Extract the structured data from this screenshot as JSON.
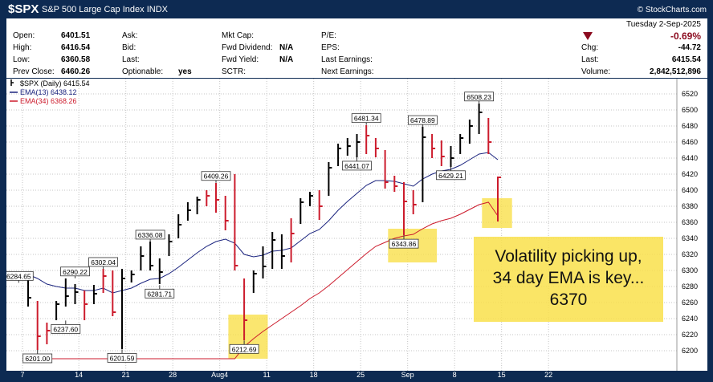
{
  "header": {
    "symbol": "$SPX",
    "company": "S&P 500 Large Cap Index",
    "exchange": "INDX",
    "credit": "© StockCharts.com"
  },
  "quote": {
    "date": "Tuesday  2-Sep-2025",
    "left": [
      {
        "label": "Open:",
        "value": "6401.51"
      },
      {
        "label": "High:",
        "value": "6416.54"
      },
      {
        "label": "Low:",
        "value": "6360.58"
      },
      {
        "label": "Prev Close:",
        "value": "6460.26"
      }
    ],
    "col2": [
      "Ask:",
      "Bid:",
      "Last:",
      "Optionable:"
    ],
    "optionable_value": "yes",
    "col3": [
      {
        "label": "Mkt Cap:",
        "value": ""
      },
      {
        "label": "Fwd Dividend:",
        "value": "N/A"
      },
      {
        "label": "Fwd Yield:",
        "value": "N/A"
      },
      {
        "label": "SCTR:",
        "value": ""
      }
    ],
    "col4": [
      "P/E:",
      "EPS:",
      "Last Earnings:",
      "Next Earnings:"
    ],
    "change_pct": "-0.69%",
    "right": [
      {
        "label": "Chg:",
        "value": "-44.72"
      },
      {
        "label": "Last:",
        "value": "6415.54"
      },
      {
        "label": "Volume:",
        "value": "2,842,512,896"
      }
    ],
    "down_color": "#8b0a1e"
  },
  "chart_data": {
    "type": "bar",
    "ohlc_style": "hlc bars",
    "ylim": [
      6190,
      6530
    ],
    "yticks": [
      6200,
      6220,
      6240,
      6260,
      6280,
      6300,
      6320,
      6340,
      6360,
      6380,
      6400,
      6420,
      6440,
      6460,
      6480,
      6500,
      6520
    ],
    "xticks": [
      "7",
      "14",
      "21",
      "28",
      "Aug4",
      "11",
      "18",
      "25",
      "Sep",
      "8",
      "15",
      "22"
    ],
    "legend": [
      {
        "text": "$SPX (Daily) 6415.54",
        "color": "#000000"
      },
      {
        "text": "EMA(13) 6438.12",
        "color": "#1a237e"
      },
      {
        "text": "EMA(34) 6368.26",
        "color": "#cc1b2c"
      }
    ],
    "bars": [
      {
        "i": 0,
        "h": 6290,
        "l": 6255,
        "c": 6266,
        "d": 0
      },
      {
        "i": 1,
        "h": 6262,
        "l": 6201,
        "c": 6218,
        "d": 1
      },
      {
        "i": 2,
        "h": 6235,
        "l": 6208,
        "c": 6225,
        "d": 1
      },
      {
        "i": 3,
        "h": 6262,
        "l": 6238,
        "c": 6258,
        "d": 0
      },
      {
        "i": 4,
        "h": 6290,
        "l": 6255,
        "c": 6268,
        "d": 0
      },
      {
        "i": 5,
        "h": 6283,
        "l": 6258,
        "c": 6273,
        "d": 0
      },
      {
        "i": 6,
        "h": 6275,
        "l": 6238,
        "c": 6258,
        "d": 1
      },
      {
        "i": 7,
        "h": 6282,
        "l": 6258,
        "c": 6271,
        "d": 0
      },
      {
        "i": 8,
        "h": 6302,
        "l": 6272,
        "c": 6293,
        "d": 1
      },
      {
        "i": 9,
        "h": 6300,
        "l": 6243,
        "c": 6248,
        "d": 1
      },
      {
        "i": 10,
        "h": 6302,
        "l": 6202,
        "c": 6290,
        "d": 0
      },
      {
        "i": 11,
        "h": 6300,
        "l": 6285,
        "c": 6295,
        "d": 0
      },
      {
        "i": 12,
        "h": 6330,
        "l": 6300,
        "c": 6318,
        "d": 0
      },
      {
        "i": 13,
        "h": 6336,
        "l": 6300,
        "c": 6306,
        "d": 0
      },
      {
        "i": 14,
        "h": 6315,
        "l": 6283,
        "c": 6298,
        "d": 0
      },
      {
        "i": 15,
        "h": 6345,
        "l": 6318,
        "c": 6336,
        "d": 0
      },
      {
        "i": 16,
        "h": 6370,
        "l": 6340,
        "c": 6357,
        "d": 0
      },
      {
        "i": 17,
        "h": 6385,
        "l": 6362,
        "c": 6375,
        "d": 0
      },
      {
        "i": 18,
        "h": 6392,
        "l": 6370,
        "c": 6388,
        "d": 0
      },
      {
        "i": 19,
        "h": 6400,
        "l": 6380,
        "c": 6393,
        "d": 1
      },
      {
        "i": 20,
        "h": 6409,
        "l": 6372,
        "c": 6388,
        "d": 1
      },
      {
        "i": 21,
        "h": 6393,
        "l": 6350,
        "c": 6362,
        "d": 1
      },
      {
        "i": 22,
        "h": 6420,
        "l": 6300,
        "c": 6306,
        "d": 1
      },
      {
        "i": 23,
        "h": 6290,
        "l": 6213,
        "c": 6238,
        "d": 1
      },
      {
        "i": 24,
        "h": 6300,
        "l": 6272,
        "c": 6296,
        "d": 0
      },
      {
        "i": 25,
        "h": 6330,
        "l": 6290,
        "c": 6305,
        "d": 0
      },
      {
        "i": 26,
        "h": 6348,
        "l": 6302,
        "c": 6338,
        "d": 0
      },
      {
        "i": 27,
        "h": 6345,
        "l": 6302,
        "c": 6318,
        "d": 0
      },
      {
        "i": 28,
        "h": 6365,
        "l": 6310,
        "c": 6346,
        "d": 1
      },
      {
        "i": 29,
        "h": 6390,
        "l": 6358,
        "c": 6385,
        "d": 0
      },
      {
        "i": 30,
        "h": 6398,
        "l": 6380,
        "c": 6393,
        "d": 0
      },
      {
        "i": 31,
        "h": 6400,
        "l": 6363,
        "c": 6380,
        "d": 1
      },
      {
        "i": 32,
        "h": 6435,
        "l": 6393,
        "c": 6428,
        "d": 0
      },
      {
        "i": 33,
        "h": 6458,
        "l": 6430,
        "c": 6452,
        "d": 0
      },
      {
        "i": 34,
        "h": 6465,
        "l": 6443,
        "c": 6455,
        "d": 0
      },
      {
        "i": 35,
        "h": 6470,
        "l": 6441,
        "c": 6460,
        "d": 0
      },
      {
        "i": 36,
        "h": 6481,
        "l": 6445,
        "c": 6468,
        "d": 1
      },
      {
        "i": 37,
        "h": 6465,
        "l": 6441,
        "c": 6452,
        "d": 1
      },
      {
        "i": 38,
        "h": 6450,
        "l": 6402,
        "c": 6410,
        "d": 1
      },
      {
        "i": 39,
        "h": 6418,
        "l": 6398,
        "c": 6405,
        "d": 1
      },
      {
        "i": 40,
        "h": 6410,
        "l": 6344,
        "c": 6386,
        "d": 1
      },
      {
        "i": 41,
        "h": 6400,
        "l": 6370,
        "c": 6382,
        "d": 1
      },
      {
        "i": 42,
        "h": 6479,
        "l": 6385,
        "c": 6466,
        "d": 0
      },
      {
        "i": 43,
        "h": 6470,
        "l": 6440,
        "c": 6452,
        "d": 1
      },
      {
        "i": 44,
        "h": 6462,
        "l": 6430,
        "c": 6442,
        "d": 1
      },
      {
        "i": 45,
        "h": 6455,
        "l": 6429,
        "c": 6440,
        "d": 0
      },
      {
        "i": 46,
        "h": 6470,
        "l": 6445,
        "c": 6465,
        "d": 0
      },
      {
        "i": 47,
        "h": 6488,
        "l": 6458,
        "c": 6480,
        "d": 0
      },
      {
        "i": 48,
        "h": 6508,
        "l": 6470,
        "c": 6497,
        "d": 0
      },
      {
        "i": 49,
        "h": 6490,
        "l": 6445,
        "c": 6460,
        "d": 1
      },
      {
        "i": 50,
        "h": 6417,
        "l": 6361,
        "c": 6416,
        "d": 1
      }
    ],
    "ema13": [
      6295,
      6290,
      6283,
      6280,
      6278,
      6278,
      6275,
      6275,
      6278,
      6272,
      6275,
      6278,
      6284,
      6289,
      6290,
      6296,
      6304,
      6313,
      6322,
      6330,
      6336,
      6339,
      6334,
      6320,
      6317,
      6319,
      6324,
      6325,
      6328,
      6337,
      6346,
      6351,
      6362,
      6375,
      6386,
      6396,
      6406,
      6412,
      6412,
      6411,
      6408,
      6405,
      6414,
      6420,
      6424,
      6426,
      6431,
      6438,
      6445,
      6447,
      6438
    ],
    "ema34": [
      6190,
      6190,
      6190,
      6190,
      6190,
      6190,
      6190,
      6190,
      6190,
      6190,
      6190,
      6190,
      6190,
      6190,
      6190,
      6190,
      6190,
      6190,
      6190,
      6190,
      6190,
      6190,
      6190,
      6205,
      6215,
      6224,
      6232,
      6240,
      6248,
      6256,
      6265,
      6272,
      6281,
      6291,
      6301,
      6311,
      6321,
      6330,
      6335,
      6340,
      6343,
      6345,
      6352,
      6358,
      6362,
      6365,
      6370,
      6376,
      6382,
      6385,
      6368
    ],
    "labels": [
      {
        "i": -1,
        "v": 6284.65,
        "text": "6284.65",
        "pos": "above"
      },
      {
        "i": 1,
        "v": 6201.0,
        "text": "6201.00",
        "pos": "below"
      },
      {
        "i": 5,
        "v": 6290.22,
        "text": "6290.22",
        "pos": "above"
      },
      {
        "i": 4,
        "v": 6237.6,
        "text": "6237.60",
        "pos": "below"
      },
      {
        "i": 8,
        "v": 6302.04,
        "text": "6302.04",
        "pos": "above"
      },
      {
        "i": 10,
        "v": 6201.59,
        "text": "6201.59",
        "pos": "below"
      },
      {
        "i": 13,
        "v": 6336.08,
        "text": "6336.08",
        "pos": "above"
      },
      {
        "i": 14,
        "v": 6281.71,
        "text": "6281.71",
        "pos": "below"
      },
      {
        "i": 20,
        "v": 6409.26,
        "text": "6409.26",
        "pos": "above"
      },
      {
        "i": 23,
        "v": 6212.69,
        "text": "6212.69",
        "pos": "below"
      },
      {
        "i": 36,
        "v": 6481.34,
        "text": "6481.34",
        "pos": "above"
      },
      {
        "i": 35,
        "v": 6441.07,
        "text": "6441.07",
        "pos": "below"
      },
      {
        "i": 40,
        "v": 6343.86,
        "text": "6343.86",
        "pos": "below"
      },
      {
        "i": 42,
        "v": 6478.89,
        "text": "6478.89",
        "pos": "above"
      },
      {
        "i": 45,
        "v": 6429.21,
        "text": "6429.21",
        "pos": "below"
      },
      {
        "i": 48,
        "v": 6508.23,
        "text": "6508.23",
        "pos": "above"
      }
    ],
    "highlights": [
      {
        "i0": 22,
        "i1": 25,
        "v0": 6190,
        "v1": 6245
      },
      {
        "i0": 39,
        "i1": 43,
        "v0": 6310,
        "v1": 6352
      },
      {
        "i0": 49,
        "i1": 51,
        "v0": 6353,
        "v1": 6390
      }
    ],
    "annotation": "Volatility picking up,\n34 day EMA is key...\n6370",
    "colors": {
      "up": "#000000",
      "down": "#cc1b2c",
      "ema13": "#1a237e",
      "ema34": "#cc1b2c",
      "grid": "#c4c4c4",
      "highlight": "#f9e04b"
    }
  }
}
